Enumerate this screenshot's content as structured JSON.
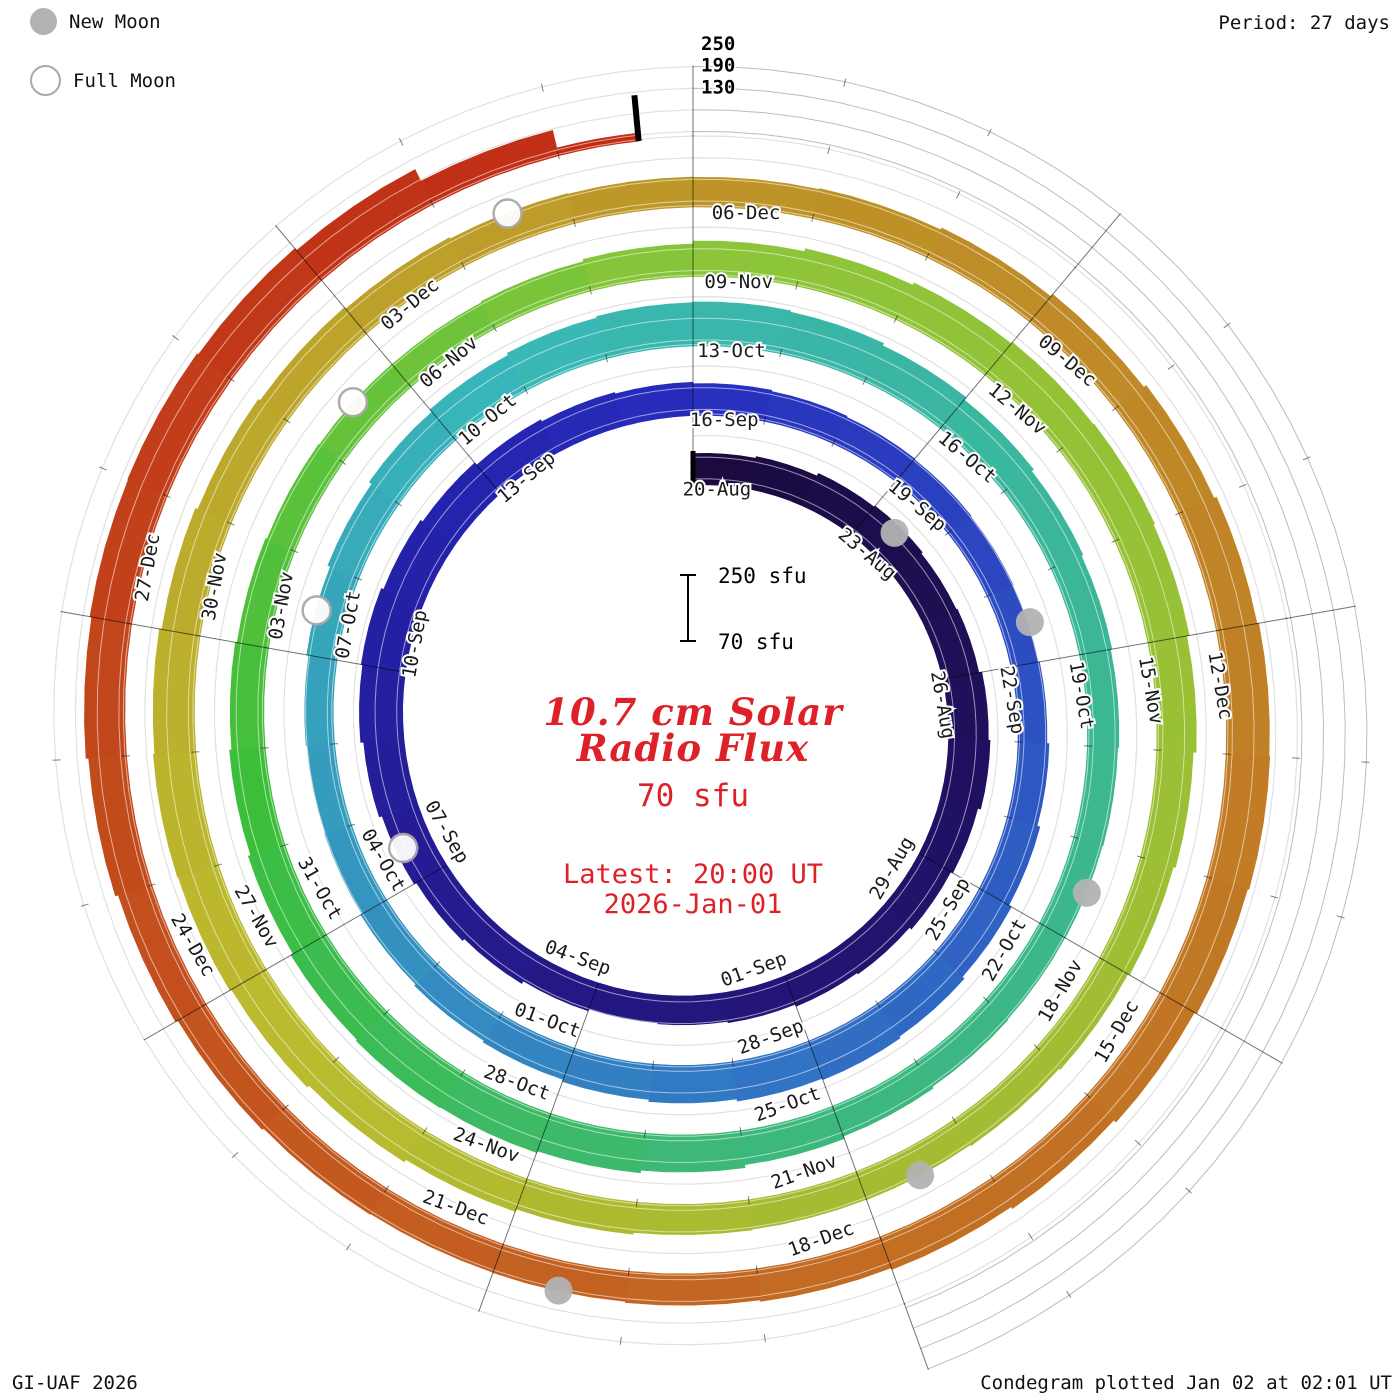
{
  "header": {
    "period_label": "Period: 27 days"
  },
  "legend": {
    "new_moon_label": "New Moon",
    "full_moon_label": "Full Moon"
  },
  "footer": {
    "left": "GI-UAF 2026",
    "right": "Condegram plotted Jan 02 at 02:01 UT"
  },
  "center": {
    "title_line1": "10.7 cm Solar",
    "title_line2": "Radio Flux",
    "current_flux": "70 sfu",
    "latest_line1": "Latest: 20:00 UT",
    "latest_line2": "2026-Jan-01",
    "scale_top_label": "250 sfu",
    "scale_bottom_label": "70 sfu"
  },
  "colors": {
    "accent_red": "#de2128",
    "grid": "#bcbcbc",
    "tick": "#000000",
    "moon_new_fill": "#b2b2b2",
    "moon_full_stroke": "#a9a9a9",
    "label_text": "#1a1a1a"
  },
  "chart_data": {
    "type": "spiral-condegram",
    "title": "10.7 cm Solar Radio Flux",
    "units": "sfu",
    "rotation_period_days": 27,
    "start_date": "20-Aug",
    "end_date": "01-Jan",
    "latest_value_sfu": 70,
    "flux_axis_ticks": [
      250,
      190,
      130
    ],
    "grid_levels_sfu": [
      70,
      130,
      190,
      250
    ],
    "date_labels": [
      [
        0,
        "20-Aug"
      ],
      [
        3,
        "23-Aug"
      ],
      [
        6,
        "26-Aug"
      ],
      [
        9,
        "29-Aug"
      ],
      [
        12,
        "01-Sep"
      ],
      [
        15,
        "04-Sep"
      ],
      [
        18,
        "07-Sep"
      ],
      [
        21,
        "10-Sep"
      ],
      [
        24,
        "13-Sep"
      ],
      [
        27,
        "16-Sep"
      ],
      [
        30,
        "19-Sep"
      ],
      [
        33,
        "22-Sep"
      ],
      [
        36,
        "25-Sep"
      ],
      [
        39,
        "28-Sep"
      ],
      [
        42,
        "01-Oct"
      ],
      [
        45,
        "04-Oct"
      ],
      [
        48,
        "07-Oct"
      ],
      [
        51,
        "10-Oct"
      ],
      [
        54,
        "13-Oct"
      ],
      [
        57,
        "16-Oct"
      ],
      [
        60,
        "19-Oct"
      ],
      [
        63,
        "22-Oct"
      ],
      [
        66,
        "25-Oct"
      ],
      [
        69,
        "28-Oct"
      ],
      [
        72,
        "31-Oct"
      ],
      [
        75,
        "03-Nov"
      ],
      [
        78,
        "06-Nov"
      ],
      [
        81,
        "09-Nov"
      ],
      [
        84,
        "12-Nov"
      ],
      [
        87,
        "15-Nov"
      ],
      [
        90,
        "18-Nov"
      ],
      [
        93,
        "21-Nov"
      ],
      [
        96,
        "24-Nov"
      ],
      [
        99,
        "27-Nov"
      ],
      [
        102,
        "30-Nov"
      ],
      [
        105,
        "03-Dec"
      ],
      [
        108,
        "06-Dec"
      ],
      [
        111,
        "09-Dec"
      ],
      [
        114,
        "12-Dec"
      ],
      [
        117,
        "15-Dec"
      ],
      [
        120,
        "18-Dec"
      ],
      [
        123,
        "21-Dec"
      ],
      [
        126,
        "24-Dec"
      ],
      [
        129,
        "27-Dec"
      ]
    ],
    "daily_flux_sfu": [
      135,
      140,
      148,
      152,
      147,
      150,
      158,
      163,
      155,
      149,
      142,
      138,
      132,
      128,
      125,
      130,
      138,
      145,
      152,
      160,
      168,
      172,
      165,
      158,
      150,
      144,
      140,
      136,
      133,
      130,
      128,
      126,
      124,
      128,
      134,
      142,
      150,
      157,
      162,
      158,
      152,
      146,
      140,
      135,
      130,
      126,
      124,
      127,
      133,
      141,
      150,
      158,
      164,
      168,
      170,
      166,
      159,
      151,
      144,
      139,
      135,
      132,
      130,
      129,
      131,
      136,
      143,
      151,
      158,
      163,
      165,
      161,
      154,
      147,
      141,
      136,
      132,
      130,
      129,
      132,
      138,
      146,
      154,
      161,
      166,
      168,
      164,
      157,
      149,
      143,
      138,
      134,
      131,
      130,
      132,
      137,
      144,
      152,
      159,
      164,
      166,
      162,
      155,
      148,
      142,
      137,
      133,
      131,
      130,
      133,
      139,
      147,
      155,
      162,
      167,
      169,
      165,
      158,
      150,
      144,
      139,
      135,
      132,
      131,
      133,
      138,
      145,
      153,
      160,
      165,
      167,
      163,
      156,
      120,
      70
    ],
    "moons": [
      {
        "type": "new",
        "day": 3.5,
        "date": "23-Aug"
      },
      {
        "type": "full",
        "day": 18.5,
        "date": "07-Sep"
      },
      {
        "type": "new",
        "day": 32.5,
        "date": "21-Sep"
      },
      {
        "type": "full",
        "day": 48.5,
        "date": "07-Oct"
      },
      {
        "type": "new",
        "day": 62.5,
        "date": "21-Oct"
      },
      {
        "type": "full",
        "day": 77.5,
        "date": "05-Nov"
      },
      {
        "type": "new",
        "day": 92.5,
        "date": "20-Nov"
      },
      {
        "type": "full",
        "day": 106.5,
        "date": "04-Dec"
      },
      {
        "type": "new",
        "day": 122.5,
        "date": "20-Dec"
      }
    ],
    "color_stops": [
      [
        0,
        258,
        72,
        14
      ],
      [
        13,
        248,
        70,
        28
      ],
      [
        27,
        238,
        65,
        45
      ],
      [
        40,
        212,
        60,
        48
      ],
      [
        54,
        175,
        52,
        47
      ],
      [
        67,
        150,
        50,
        48
      ],
      [
        81,
        85,
        55,
        50
      ],
      [
        94,
        68,
        58,
        46
      ],
      [
        108,
        44,
        65,
        45
      ],
      [
        121,
        26,
        70,
        45
      ],
      [
        134,
        8,
        80,
        42
      ]
    ]
  }
}
